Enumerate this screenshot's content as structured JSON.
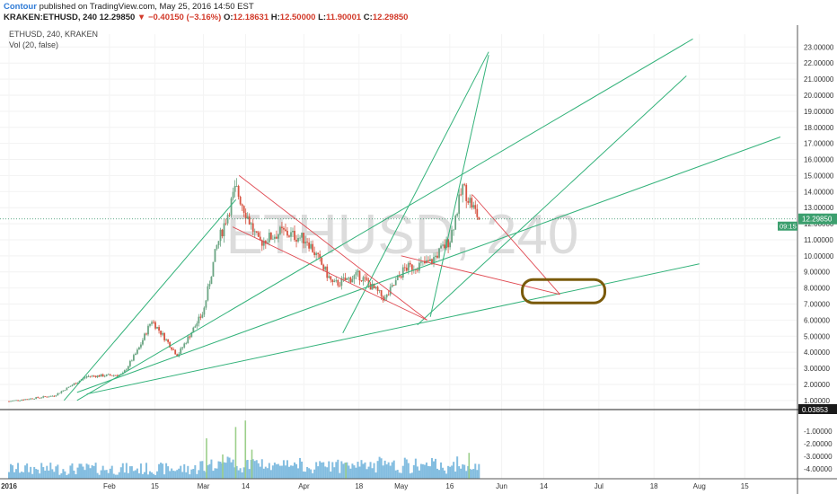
{
  "header": {
    "author": "Contour",
    "published": "published on TradingView.com, May 25, 2016 14:50 EST",
    "symbol": "KRAKEN:ETHUSD, 240",
    "last": "12.29850",
    "arrow": "▼",
    "change": "−0.40150 (−3.16%)",
    "o_label": "O:",
    "o_value": "12.18631",
    "h_label": "H:",
    "h_value": "12.50000",
    "l_label": "L:",
    "l_value": "11.90001",
    "c_label": "C:",
    "c_value": "12.29850"
  },
  "pane": {
    "title": "ETHUSD, 240, KRAKEN",
    "volume_label": "Vol (20, false)",
    "watermark": "ETHUSD, 240"
  },
  "chart_data": {
    "type": "candlestick",
    "symbol": "ETHUSD",
    "timeframe": "240",
    "x_ticks": [
      "2016",
      "Feb",
      "15",
      "Mar",
      "14",
      "Apr",
      "18",
      "May",
      "16",
      "Jun",
      "14",
      "Jul",
      "18",
      "Aug",
      "15"
    ],
    "y_ticks": [
      "23.00000",
      "22.00000",
      "21.00000",
      "20.00000",
      "19.00000",
      "18.00000",
      "17.00000",
      "16.00000",
      "15.00000",
      "14.00000",
      "13.00000",
      "12.00000",
      "11.00000",
      "10.00000",
      "9.00000",
      "8.00000",
      "7.00000",
      "6.00000",
      "5.00000",
      "4.00000",
      "3.00000",
      "2.00000",
      "1.00000"
    ],
    "ylim": [
      0.6,
      23.8
    ],
    "current_price": 12.2985,
    "current_price_label": "12.29850",
    "countdown": "09:15",
    "volume_label_value": "0.03853",
    "volume_ticks": [
      "-1.00000",
      "-2.00000",
      "-3.00000",
      "-4.00000"
    ],
    "price_path": [
      [
        "2016-01-01",
        0.95
      ],
      [
        "2016-01-15",
        1.3
      ],
      [
        "2016-01-25",
        2.5
      ],
      [
        "2016-02-05",
        2.6
      ],
      [
        "2016-02-10",
        4.2
      ],
      [
        "2016-02-14",
        6.0
      ],
      [
        "2016-02-22",
        3.8
      ],
      [
        "2016-03-01",
        6.5
      ],
      [
        "2016-03-05",
        10.5
      ],
      [
        "2016-03-11",
        14.2
      ],
      [
        "2016-03-18",
        10.8
      ],
      [
        "2016-03-25",
        11.5
      ],
      [
        "2016-04-02",
        11.0
      ],
      [
        "2016-04-10",
        8.2
      ],
      [
        "2016-04-18",
        8.8
      ],
      [
        "2016-04-26",
        7.3
      ],
      [
        "2016-05-02",
        9.2
      ],
      [
        "2016-05-10",
        9.6
      ],
      [
        "2016-05-16",
        11.0
      ],
      [
        "2016-05-20",
        14.3
      ],
      [
        "2016-05-25",
        12.3
      ]
    ],
    "volume_spikes": [
      [
        "2016-03-02",
        2.5
      ],
      [
        "2016-03-07",
        1.5
      ],
      [
        "2016-03-11",
        3.2
      ],
      [
        "2016-03-14",
        3.6
      ],
      [
        "2016-03-16",
        1.8
      ],
      [
        "2016-04-14",
        1.0
      ],
      [
        "2016-05-22",
        1.6
      ]
    ],
    "trend_lines_green": [
      [
        [
          "2016-01-22",
          1.0
        ],
        [
          "2016-07-30",
          23.5
        ]
      ],
      [
        [
          "2016-01-18",
          1.0
        ],
        [
          "2016-03-11",
          13.5
        ]
      ],
      [
        [
          "2016-01-25",
          1.4
        ],
        [
          "2016-08-01",
          9.5
        ]
      ],
      [
        [
          "2016-04-13",
          5.2
        ],
        [
          "2016-05-28",
          22.7
        ]
      ],
      [
        [
          "2016-05-10",
          6.2
        ],
        [
          "2016-05-28",
          22.5
        ]
      ],
      [
        [
          "2016-05-06",
          5.7
        ],
        [
          "2016-07-28",
          21.2
        ]
      ],
      [
        [
          "2016-01-22",
          1.5
        ],
        [
          "2016-08-26",
          17.4
        ]
      ]
    ],
    "trend_lines_red": [
      [
        [
          "2016-03-12",
          15.0
        ],
        [
          "2016-05-09",
          6.0
        ]
      ],
      [
        [
          "2016-03-10",
          11.8
        ],
        [
          "2016-05-09",
          6.0
        ]
      ],
      [
        [
          "2016-05-01",
          10.0
        ],
        [
          "2016-06-19",
          7.6
        ]
      ],
      [
        [
          "2016-05-23",
          13.8
        ],
        [
          "2016-06-19",
          7.6
        ]
      ]
    ],
    "highlight_ellipse": {
      "center": [
        "2016-06-19",
        7.8
      ],
      "color": "#7a5a0a"
    }
  },
  "colors": {
    "up": "#6ba583",
    "down": "#d75442",
    "trend_green": "#33b27a",
    "trend_red": "#e04a52",
    "volume": "#5aa7d6",
    "price_line": "#2f8f64"
  }
}
